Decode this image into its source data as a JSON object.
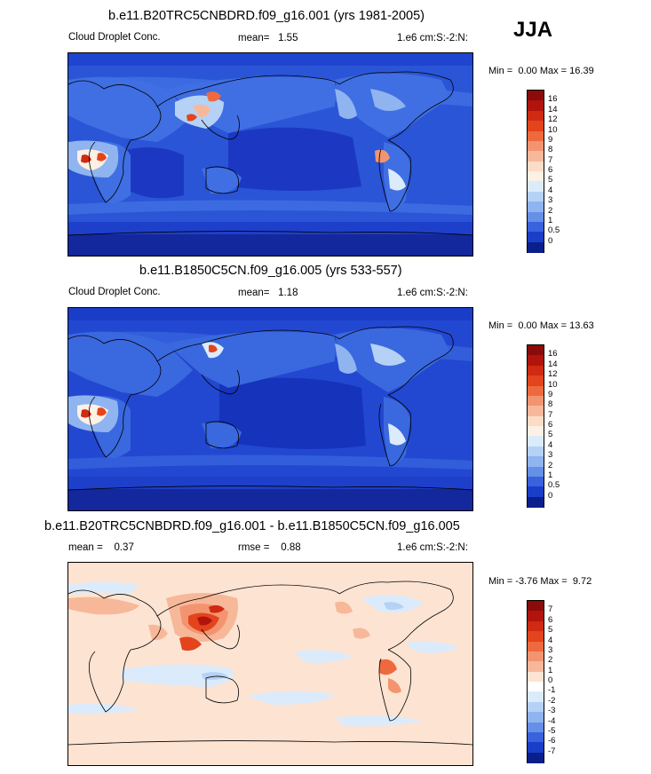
{
  "season": "JJA",
  "panels": [
    {
      "title": "b.e11.B20TRC5CNBDRD.f09_g16.001 (yrs 1981-2005)",
      "left_label": "Cloud Droplet Conc.",
      "stat_label": "mean=",
      "stat_value": "1.55",
      "extra_label": "",
      "extra_value": "",
      "units": "1.e6 cm:S:-2:N:",
      "min_label": "Min =",
      "min_value": "0.00",
      "max_label": "Max =",
      "max_value": "16.39",
      "colorbar": {
        "labels": [
          "16",
          "14",
          "12",
          "10",
          "9",
          "8",
          "7",
          "6",
          "5",
          "4",
          "3",
          "2",
          "1",
          "0.5",
          "0"
        ],
        "colors": [
          "#8b0a0a",
          "#b0140c",
          "#cf2a12",
          "#e3441c",
          "#ee6a3e",
          "#f39470",
          "#f7b89a",
          "#fbdcc6",
          "#fdf0e4",
          "#dcebfb",
          "#b5d2f6",
          "#8fb4f0",
          "#6690e8",
          "#3a62dc",
          "#1b3ec9",
          "#0b1f8a"
        ],
        "units": ""
      }
    },
    {
      "title": "b.e11.B1850C5CN.f09_g16.005 (yrs 533-557)",
      "left_label": "Cloud Droplet Conc.",
      "stat_label": "mean=",
      "stat_value": "1.18",
      "extra_label": "",
      "extra_value": "",
      "units": "1.e6 cm:S:-2:N:",
      "min_label": "Min =",
      "min_value": "0.00",
      "max_label": "Max =",
      "max_value": "13.63",
      "colorbar": {
        "labels": [
          "16",
          "14",
          "12",
          "10",
          "9",
          "8",
          "7",
          "6",
          "5",
          "4",
          "3",
          "2",
          "1",
          "0.5",
          "0"
        ],
        "colors": [
          "#8b0a0a",
          "#b0140c",
          "#cf2a12",
          "#e3441c",
          "#ee6a3e",
          "#f39470",
          "#f7b89a",
          "#fbdcc6",
          "#fdf0e4",
          "#dcebfb",
          "#b5d2f6",
          "#8fb4f0",
          "#6690e8",
          "#3a62dc",
          "#1b3ec9",
          "#0b1f8a"
        ],
        "units": ""
      }
    },
    {
      "title": "b.e11.B20TRC5CNBDRD.f09_g16.001 - b.e11.B1850C5CN.f09_g16.005",
      "left_label": "mean =",
      "stat_label": "0.37",
      "stat_value": "",
      "extra_label": "rmse =",
      "extra_value": "0.88",
      "units": "1.e6 cm:S:-2:N:",
      "min_label": "Min =",
      "min_value": "-3.76",
      "max_label": "Max =",
      "max_value": "9.72",
      "colorbar": {
        "labels": [
          "7",
          "6",
          "5",
          "4",
          "3",
          "2",
          "1",
          "0",
          "-1",
          "-2",
          "-3",
          "-4",
          "-5",
          "-6",
          "-7"
        ],
        "colors": [
          "#8b0a0a",
          "#b0140c",
          "#cf2a12",
          "#e3441c",
          "#ee6a3e",
          "#f39470",
          "#f7b89a",
          "#fde3d2",
          "#ffffff",
          "#dcebfb",
          "#b5d2f6",
          "#8fb4f0",
          "#6690e8",
          "#3a62dc",
          "#1b3ec9",
          "#0b1f8a"
        ],
        "units": ""
      }
    }
  ]
}
